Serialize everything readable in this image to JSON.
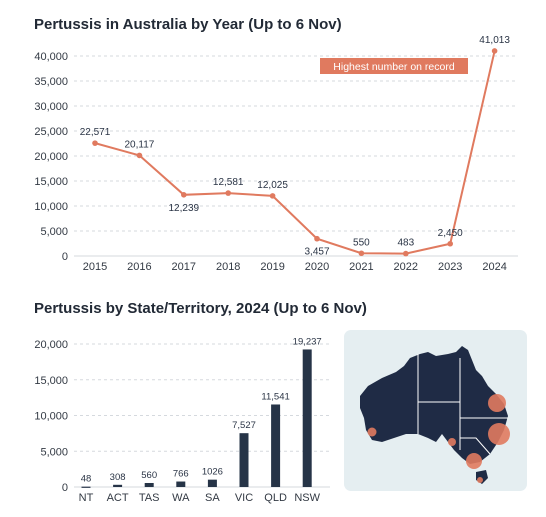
{
  "chart_data": [
    {
      "type": "line",
      "title": "Pertussis in Australia by Year (Up to 6 Nov)",
      "x": [
        "2015",
        "2016",
        "2017",
        "2018",
        "2019",
        "2020",
        "2021",
        "2022",
        "2023",
        "2024"
      ],
      "values": [
        22571,
        20117,
        12239,
        12581,
        12025,
        3457,
        550,
        483,
        2450,
        41013
      ],
      "data_labels": [
        "22,571",
        "20,117",
        "12,239",
        "12,581",
        "12,025",
        "3,457",
        "550",
        "483",
        "2,450",
        "41,013"
      ],
      "y_ticks": [
        0,
        5000,
        10000,
        15000,
        20000,
        25000,
        30000,
        35000,
        40000
      ],
      "y_tick_labels": [
        "0",
        "5,000",
        "10,000",
        "15,000",
        "20,000",
        "25,000",
        "30,000",
        "35,000",
        "40,000"
      ],
      "ylim": [
        0,
        42000
      ],
      "grid": "horizontal dashed",
      "annotation": "Highest number on record",
      "color": "#e07a5f"
    },
    {
      "type": "bar",
      "title": "Pertussis by State/Territory, 2024 (Up to 6 Nov)",
      "categories": [
        "NT",
        "ACT",
        "TAS",
        "WA",
        "SA",
        "VIC",
        "QLD",
        "NSW"
      ],
      "values": [
        48,
        308,
        560,
        766,
        1026,
        7527,
        11541,
        19237
      ],
      "data_labels": [
        "48",
        "308",
        "560",
        "766",
        "1026",
        "7,527",
        "11,541",
        "19,237"
      ],
      "y_ticks": [
        0,
        5000,
        10000,
        15000,
        20000
      ],
      "y_tick_labels": [
        "0",
        "5,000",
        "10,000",
        "15,000",
        "20,000"
      ],
      "ylim": [
        0,
        20000
      ],
      "grid": "horizontal dashed",
      "color": "#263447"
    }
  ],
  "map": {
    "land_color": "#1f2b45",
    "border_color": "#ffffff",
    "bubble_color": "#e07a5f"
  }
}
